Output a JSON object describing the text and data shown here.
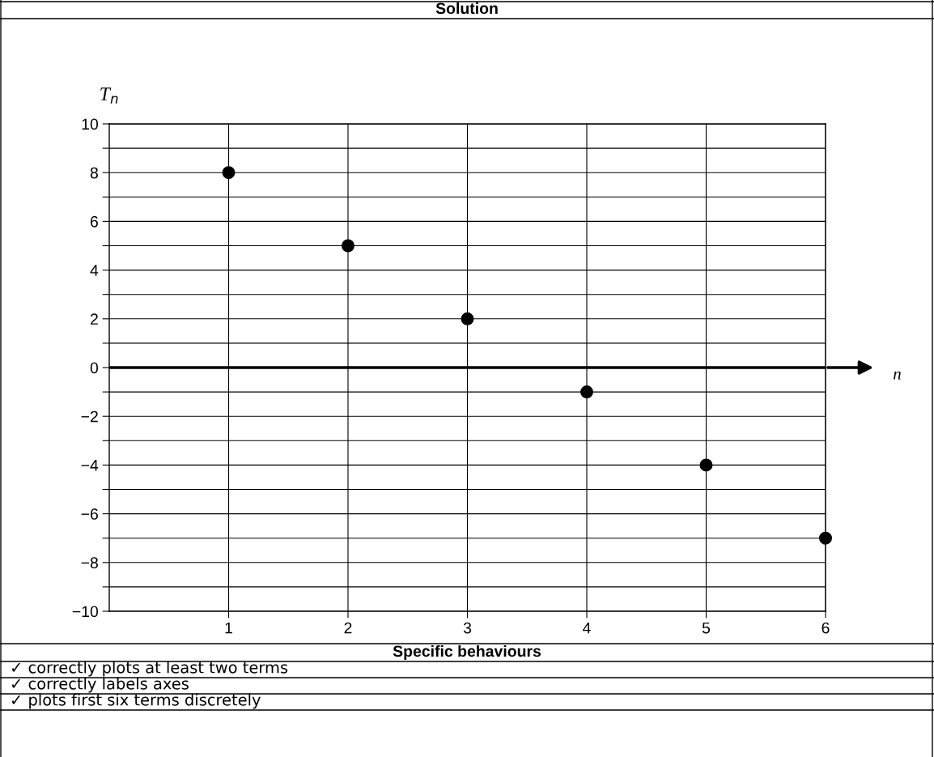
{
  "chart_data": {
    "type": "scatter",
    "title": "Solution",
    "xlabel": "n",
    "ylabel": "T$_{n}$",
    "x": [
      1,
      2,
      3,
      4,
      5,
      6
    ],
    "values": [
      8,
      5,
      2,
      -1,
      -4,
      -7
    ],
    "color": "#000000",
    "marker": "circle",
    "xlim": [
      0,
      6
    ],
    "xticks": [
      1,
      2,
      3,
      4,
      5,
      6
    ],
    "ylim": [
      -10,
      10
    ],
    "yticks": [
      {
        "value": -10,
        "label": "−10"
      },
      {
        "value": -9,
        "label": null
      },
      {
        "value": -8,
        "label": "−8"
      },
      {
        "value": -7,
        "label": null
      },
      {
        "value": -6,
        "label": "−6"
      },
      {
        "value": -5,
        "label": null
      },
      {
        "value": -4,
        "label": "−4"
      },
      {
        "value": -3,
        "label": null
      },
      {
        "value": -2,
        "label": "−2"
      },
      {
        "value": -1,
        "label": null
      },
      0,
      {
        "value": 1,
        "label": null
      },
      2,
      {
        "value": 3,
        "label": null
      },
      4,
      {
        "value": 5,
        "label": null
      },
      6,
      {
        "value": 7,
        "label": null
      },
      8,
      {
        "value": 9,
        "label": null
      },
      10
    ],
    "grid": true,
    "ref_lines": [
      {
        "axis": "y",
        "value": 0,
        "color": "#000000"
      }
    ],
    "annotations": [
      "Specific behaviours",
      "✓ correctly plots at least two terms",
      "✓ correctly labels axes",
      "✓ plots first six terms discretely"
    ]
  }
}
